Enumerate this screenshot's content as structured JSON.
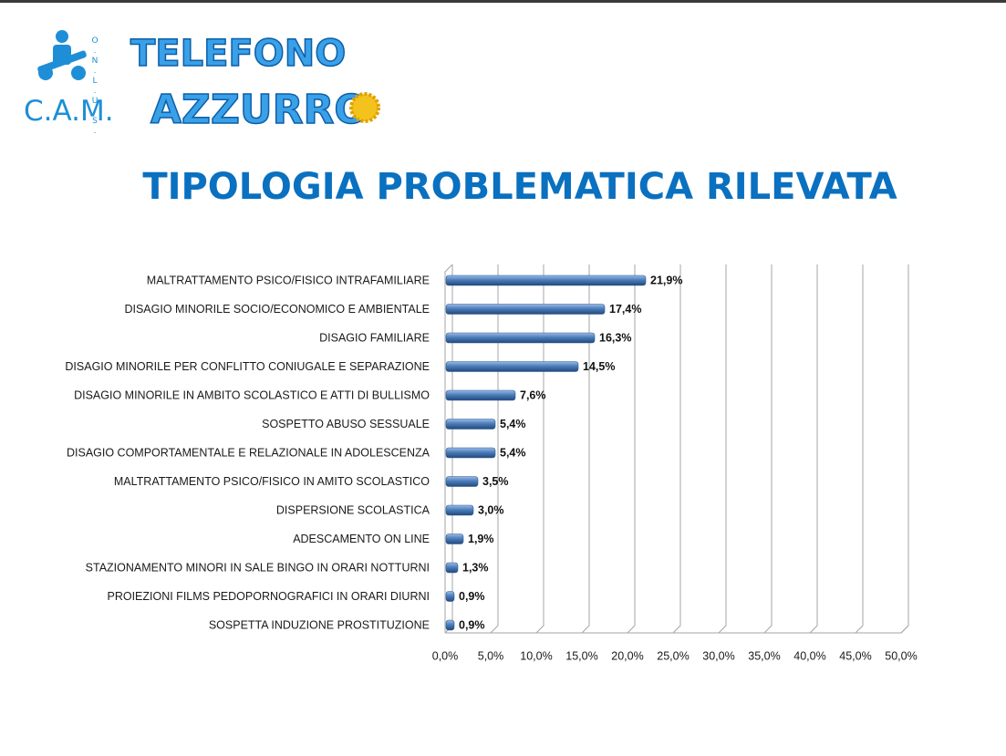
{
  "logo": {
    "acronym": "C.A.M.",
    "legal_form": "O.N.L.U.S.",
    "line1": "TELEFONO",
    "line2": "AZZURRO"
  },
  "chart_data": {
    "type": "bar",
    "orientation": "horizontal",
    "title": "TIPOLOGIA PROBLEMATICA RILEVATA",
    "categories": [
      "MALTRATTAMENTO PSICO/FISICO INTRAFAMILIARE",
      "DISAGIO MINORILE SOCIO/ECONOMICO E AMBIENTALE",
      "DISAGIO FAMILIARE",
      "DISAGIO MINORILE PER CONFLITTO CONIUGALE E SEPARAZIONE",
      "DISAGIO MINORILE IN AMBITO SCOLASTICO E ATTI DI BULLISMO",
      "SOSPETTO ABUSO SESSUALE",
      "DISAGIO COMPORTAMENTALE E RELAZIONALE IN ADOLESCENZA",
      "MALTRATTAMENTO PSICO/FISICO IN AMITO SCOLASTICO",
      "DISPERSIONE SCOLASTICA",
      "ADESCAMENTO ON LINE",
      "STAZIONAMENTO MINORI IN SALE BINGO IN ORARI NOTTURNI",
      "PROIEZIONI FILMS PEDOPORNOGRAFICI IN ORARI DIURNI",
      "SOSPETTA INDUZIONE PROSTITUZIONE"
    ],
    "values": [
      21.9,
      17.4,
      16.3,
      14.5,
      7.6,
      5.4,
      5.4,
      3.5,
      3.0,
      1.9,
      1.3,
      0.9,
      0.9
    ],
    "value_labels": [
      "21,9%",
      "17,4%",
      "16,3%",
      "14,5%",
      "7,6%",
      "5,4%",
      "5,4%",
      "3,5%",
      "3,0%",
      "1,9%",
      "1,3%",
      "0,9%",
      "0,9%"
    ],
    "color": "#4a7ebb",
    "xlim": [
      0,
      50
    ],
    "xticks": [
      {
        "value": 0,
        "label": "0,0%"
      },
      {
        "value": 5,
        "label": "5,0%"
      },
      {
        "value": 10,
        "label": "10,0%"
      },
      {
        "value": 15,
        "label": "15,0%"
      },
      {
        "value": 20,
        "label": "20,0%"
      },
      {
        "value": 25,
        "label": "25,0%"
      },
      {
        "value": 30,
        "label": "30,0%"
      },
      {
        "value": 35,
        "label": "35,0%"
      },
      {
        "value": 40,
        "label": "40,0%"
      },
      {
        "value": 45,
        "label": "45,0%"
      },
      {
        "value": 50,
        "label": "50,0%"
      }
    ],
    "grid": true
  }
}
